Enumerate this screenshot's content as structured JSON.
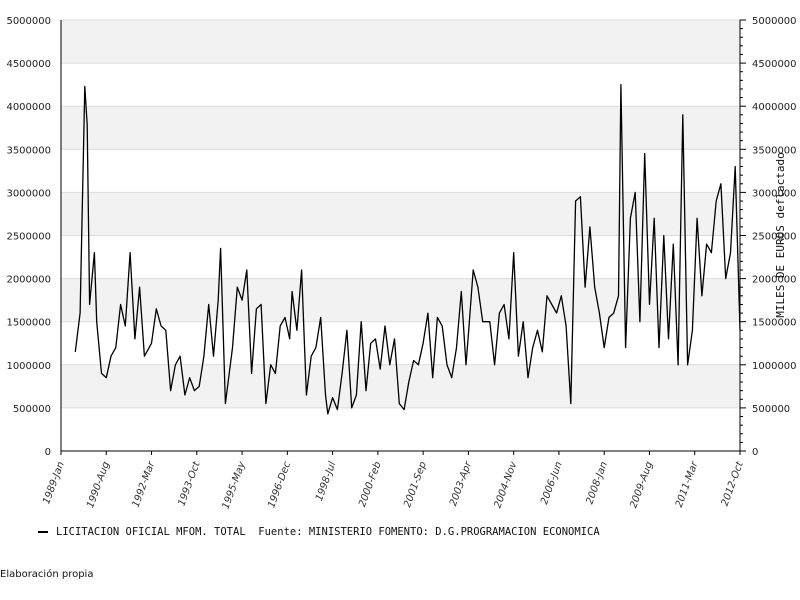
{
  "chart_data": {
    "type": "line",
    "ylabel_right": "MILES DE EUROS deflactado",
    "ylim": [
      0,
      5000000
    ],
    "y_ticks": [
      0,
      500000,
      1000000,
      1500000,
      2000000,
      2500000,
      3000000,
      3500000,
      4000000,
      4500000,
      5000000
    ],
    "x_tick_labels": [
      "1989-Jan",
      "1990-Aug",
      "1992-Mar",
      "1993-Oct",
      "1995-May",
      "1996-Dec",
      "1998-Jul",
      "2000-Feb",
      "2001-Sep",
      "2003-Apr",
      "2004-Nov",
      "2006-Jun",
      "2008-Jan",
      "2009-Aug",
      "2011-Mar",
      "2012-Oct"
    ],
    "x_start": "1989-Jan",
    "x_end": "2012-Oct",
    "grid": "horizontal bands",
    "legend_position": "bottom-left",
    "series": [
      {
        "name": "LICITACION OFICIAL MFOM. TOTAL  Fuente: MINISTERIO FOMENTO: D.G.PROGRAMACION ECONOMICA",
        "color": "#000000",
        "points": [
          [
            "1989-Jul",
            1150000
          ],
          [
            "1989-Sep",
            1600000
          ],
          [
            "1989-Nov",
            4230000
          ],
          [
            "1989-Dec",
            3780000
          ],
          [
            "1990-Jan",
            1700000
          ],
          [
            "1990-Mar",
            2300000
          ],
          [
            "1990-Apr",
            1500000
          ],
          [
            "1990-Jun",
            900000
          ],
          [
            "1990-Aug",
            850000
          ],
          [
            "1990-Oct",
            1100000
          ],
          [
            "1990-Dec",
            1200000
          ],
          [
            "1991-Feb",
            1700000
          ],
          [
            "1991-Apr",
            1450000
          ],
          [
            "1991-Jun",
            2300000
          ],
          [
            "1991-Aug",
            1300000
          ],
          [
            "1991-Oct",
            1900000
          ],
          [
            "1991-Dec",
            1100000
          ],
          [
            "1992-Mar",
            1250000
          ],
          [
            "1992-May",
            1650000
          ],
          [
            "1992-Jul",
            1450000
          ],
          [
            "1992-Sep",
            1400000
          ],
          [
            "1992-Nov",
            700000
          ],
          [
            "1993-Jan",
            1000000
          ],
          [
            "1993-Mar",
            1100000
          ],
          [
            "1993-May",
            650000
          ],
          [
            "1993-Jul",
            850000
          ],
          [
            "1993-Sep",
            700000
          ],
          [
            "1993-Nov",
            750000
          ],
          [
            "1994-Jan",
            1100000
          ],
          [
            "1994-Mar",
            1700000
          ],
          [
            "1994-May",
            1100000
          ],
          [
            "1994-Jul",
            1750000
          ],
          [
            "1994-Aug",
            2350000
          ],
          [
            "1994-Oct",
            550000
          ],
          [
            "1995-Jan",
            1200000
          ],
          [
            "1995-Mar",
            1900000
          ],
          [
            "1995-May",
            1750000
          ],
          [
            "1995-Jul",
            2100000
          ],
          [
            "1995-Sep",
            900000
          ],
          [
            "1995-Nov",
            1650000
          ],
          [
            "1996-Jan",
            1700000
          ],
          [
            "1996-Mar",
            550000
          ],
          [
            "1996-May",
            1000000
          ],
          [
            "1996-Jul",
            900000
          ],
          [
            "1996-Sep",
            1450000
          ],
          [
            "1996-Nov",
            1550000
          ],
          [
            "1997-Jan",
            1300000
          ],
          [
            "1997-Feb",
            1850000
          ],
          [
            "1997-Apr",
            1400000
          ],
          [
            "1997-Jun",
            2100000
          ],
          [
            "1997-Aug",
            650000
          ],
          [
            "1997-Oct",
            1100000
          ],
          [
            "1997-Dec",
            1200000
          ],
          [
            "1998-Feb",
            1550000
          ],
          [
            "1998-Apr",
            650000
          ],
          [
            "1998-May",
            430000
          ],
          [
            "1998-Jul",
            620000
          ],
          [
            "1998-Sep",
            480000
          ],
          [
            "1998-Nov",
            900000
          ],
          [
            "1999-Jan",
            1400000
          ],
          [
            "1999-Mar",
            500000
          ],
          [
            "1999-May",
            650000
          ],
          [
            "1999-Jul",
            1500000
          ],
          [
            "1999-Sep",
            700000
          ],
          [
            "1999-Nov",
            1250000
          ],
          [
            "2000-Jan",
            1300000
          ],
          [
            "2000-Mar",
            950000
          ],
          [
            "2000-May",
            1450000
          ],
          [
            "2000-Jul",
            1000000
          ],
          [
            "2000-Sep",
            1300000
          ],
          [
            "2000-Nov",
            550000
          ],
          [
            "2001-Jan",
            480000
          ],
          [
            "2001-Mar",
            800000
          ],
          [
            "2001-May",
            1050000
          ],
          [
            "2001-Jul",
            1000000
          ],
          [
            "2001-Sep",
            1250000
          ],
          [
            "2001-Nov",
            1600000
          ],
          [
            "2002-Jan",
            850000
          ],
          [
            "2002-Mar",
            1550000
          ],
          [
            "2002-May",
            1450000
          ],
          [
            "2002-Jul",
            1000000
          ],
          [
            "2002-Sep",
            850000
          ],
          [
            "2002-Nov",
            1200000
          ],
          [
            "2003-Jan",
            1850000
          ],
          [
            "2003-Mar",
            1000000
          ],
          [
            "2003-Apr",
            1350000
          ],
          [
            "2003-Jun",
            2100000
          ],
          [
            "2003-Aug",
            1900000
          ],
          [
            "2003-Oct",
            1500000
          ],
          [
            "2004-Jan",
            1500000
          ],
          [
            "2004-Mar",
            1000000
          ],
          [
            "2004-May",
            1600000
          ],
          [
            "2004-Jul",
            1700000
          ],
          [
            "2004-Sep",
            1300000
          ],
          [
            "2004-Nov",
            2300000
          ],
          [
            "2005-Jan",
            1100000
          ],
          [
            "2005-Mar",
            1500000
          ],
          [
            "2005-May",
            850000
          ],
          [
            "2005-Jul",
            1200000
          ],
          [
            "2005-Sep",
            1400000
          ],
          [
            "2005-Nov",
            1150000
          ],
          [
            "2006-Jan",
            1800000
          ],
          [
            "2006-Mar",
            1700000
          ],
          [
            "2006-May",
            1600000
          ],
          [
            "2006-Jul",
            1800000
          ],
          [
            "2006-Sep",
            1450000
          ],
          [
            "2006-Nov",
            550000
          ],
          [
            "2007-Jan",
            2900000
          ],
          [
            "2007-Mar",
            2950000
          ],
          [
            "2007-May",
            1900000
          ],
          [
            "2007-Jul",
            2600000
          ],
          [
            "2007-Sep",
            1900000
          ],
          [
            "2007-Nov",
            1600000
          ],
          [
            "2008-Jan",
            1200000
          ],
          [
            "2008-Mar",
            1550000
          ],
          [
            "2008-May",
            1600000
          ],
          [
            "2008-Jul",
            1800000
          ],
          [
            "2008-Aug",
            4250000
          ],
          [
            "2008-Oct",
            1200000
          ],
          [
            "2008-Dec",
            2700000
          ],
          [
            "2009-Feb",
            3000000
          ],
          [
            "2009-Apr",
            1500000
          ],
          [
            "2009-Jun",
            3450000
          ],
          [
            "2009-Aug",
            1700000
          ],
          [
            "2009-Oct",
            2700000
          ],
          [
            "2009-Dec",
            1200000
          ],
          [
            "2010-Feb",
            2500000
          ],
          [
            "2010-Apr",
            1300000
          ],
          [
            "2010-Jun",
            2400000
          ],
          [
            "2010-Aug",
            1000000
          ],
          [
            "2010-Oct",
            3900000
          ],
          [
            "2010-Dec",
            1000000
          ],
          [
            "2011-Feb",
            1400000
          ],
          [
            "2011-Apr",
            2700000
          ],
          [
            "2011-Jun",
            1800000
          ],
          [
            "2011-Aug",
            2400000
          ],
          [
            "2011-Oct",
            2300000
          ],
          [
            "2011-Dec",
            2900000
          ],
          [
            "2012-Feb",
            3100000
          ],
          [
            "2012-Apr",
            2000000
          ],
          [
            "2012-Jun",
            2300000
          ],
          [
            "2012-Aug",
            3300000
          ],
          [
            "2012-Oct",
            1400000
          ]
        ]
      }
    ]
  },
  "footer": "Elaboración propia"
}
